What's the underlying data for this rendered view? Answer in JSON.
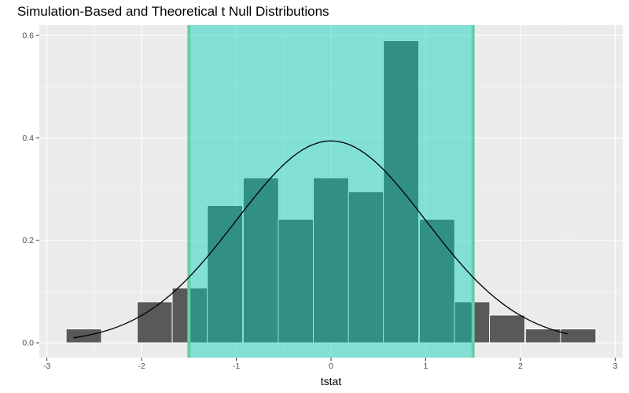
{
  "title": "Simulation-Based and Theoretical t Null Distributions",
  "colors": {
    "panel_bg": "#ebebeb",
    "grid_major": "#ffffff",
    "bar_fill": "#595959",
    "bar_stroke": "#ffffff",
    "shade_fill": "#00d1b8",
    "shade_opacity": 0.45,
    "shade_line": "#66cda6",
    "curve": "#000000"
  },
  "chart_data": {
    "type": "bar",
    "title": "Simulation-Based and Theoretical t Null Distributions",
    "xlabel": "tstat",
    "ylabel": "",
    "xlim": [
      -3.08,
      3.08
    ],
    "ylim": [
      -0.029,
      0.62
    ],
    "x_ticks": [
      -3,
      -2,
      -1,
      0,
      1,
      2,
      3
    ],
    "y_ticks": [
      0.0,
      0.2,
      0.4,
      0.6
    ],
    "y_tick_labels": [
      "0.0",
      "0.2",
      "0.4",
      "0.6"
    ],
    "bin_width": 0.3735,
    "bin_centers": [
      -2.61,
      -2.24,
      -1.86,
      -1.49,
      -1.12,
      -0.74,
      -0.37,
      0.0,
      0.37,
      0.74,
      1.12,
      1.49,
      1.86,
      2.24,
      2.61
    ],
    "values": [
      0.027,
      0.0,
      0.08,
      0.107,
      0.268,
      0.322,
      0.241,
      0.322,
      0.295,
      0.59,
      0.241,
      0.08,
      0.054,
      0.027,
      0.027
    ],
    "shaded_region": [
      -1.5,
      1.5
    ],
    "theoretical_curve": {
      "distribution": "t",
      "peak": 0.394,
      "x_range": [
        -2.72,
        2.5
      ]
    },
    "grid": true,
    "legend": null
  }
}
